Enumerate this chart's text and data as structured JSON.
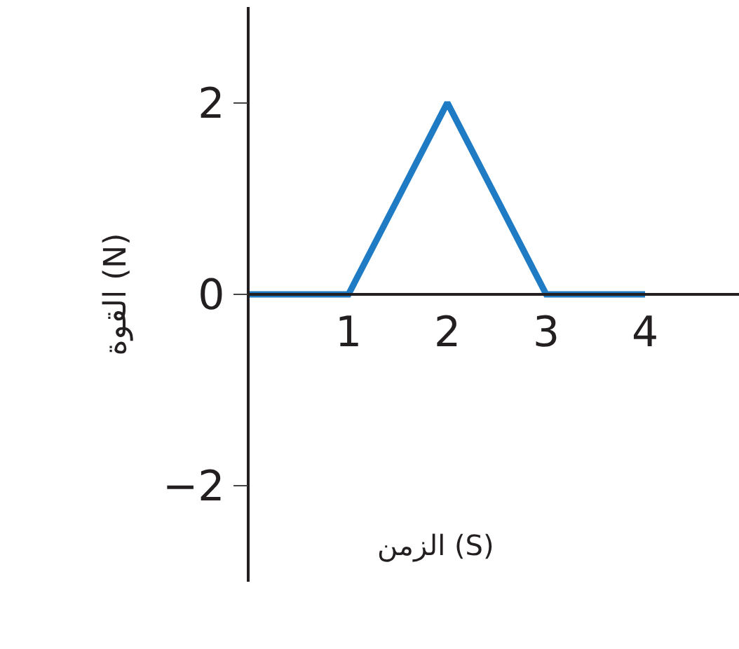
{
  "chart_data": {
    "type": "line",
    "x": [
      0,
      1,
      2,
      3,
      4
    ],
    "series": [
      {
        "color": "#1f7bc4",
        "values": [
          0,
          0,
          2,
          0,
          0
        ]
      }
    ],
    "xlim": [
      0,
      4.95
    ],
    "ylim": [
      -3,
      3
    ],
    "xticks": [
      1,
      2,
      3,
      4
    ],
    "yticks": [
      {
        "value": -2,
        "label": "−2"
      },
      0,
      2
    ],
    "xlabel": "الزمن (S)",
    "ylabel": "القوة (N)",
    "marker": "none",
    "line_style": "solid"
  }
}
